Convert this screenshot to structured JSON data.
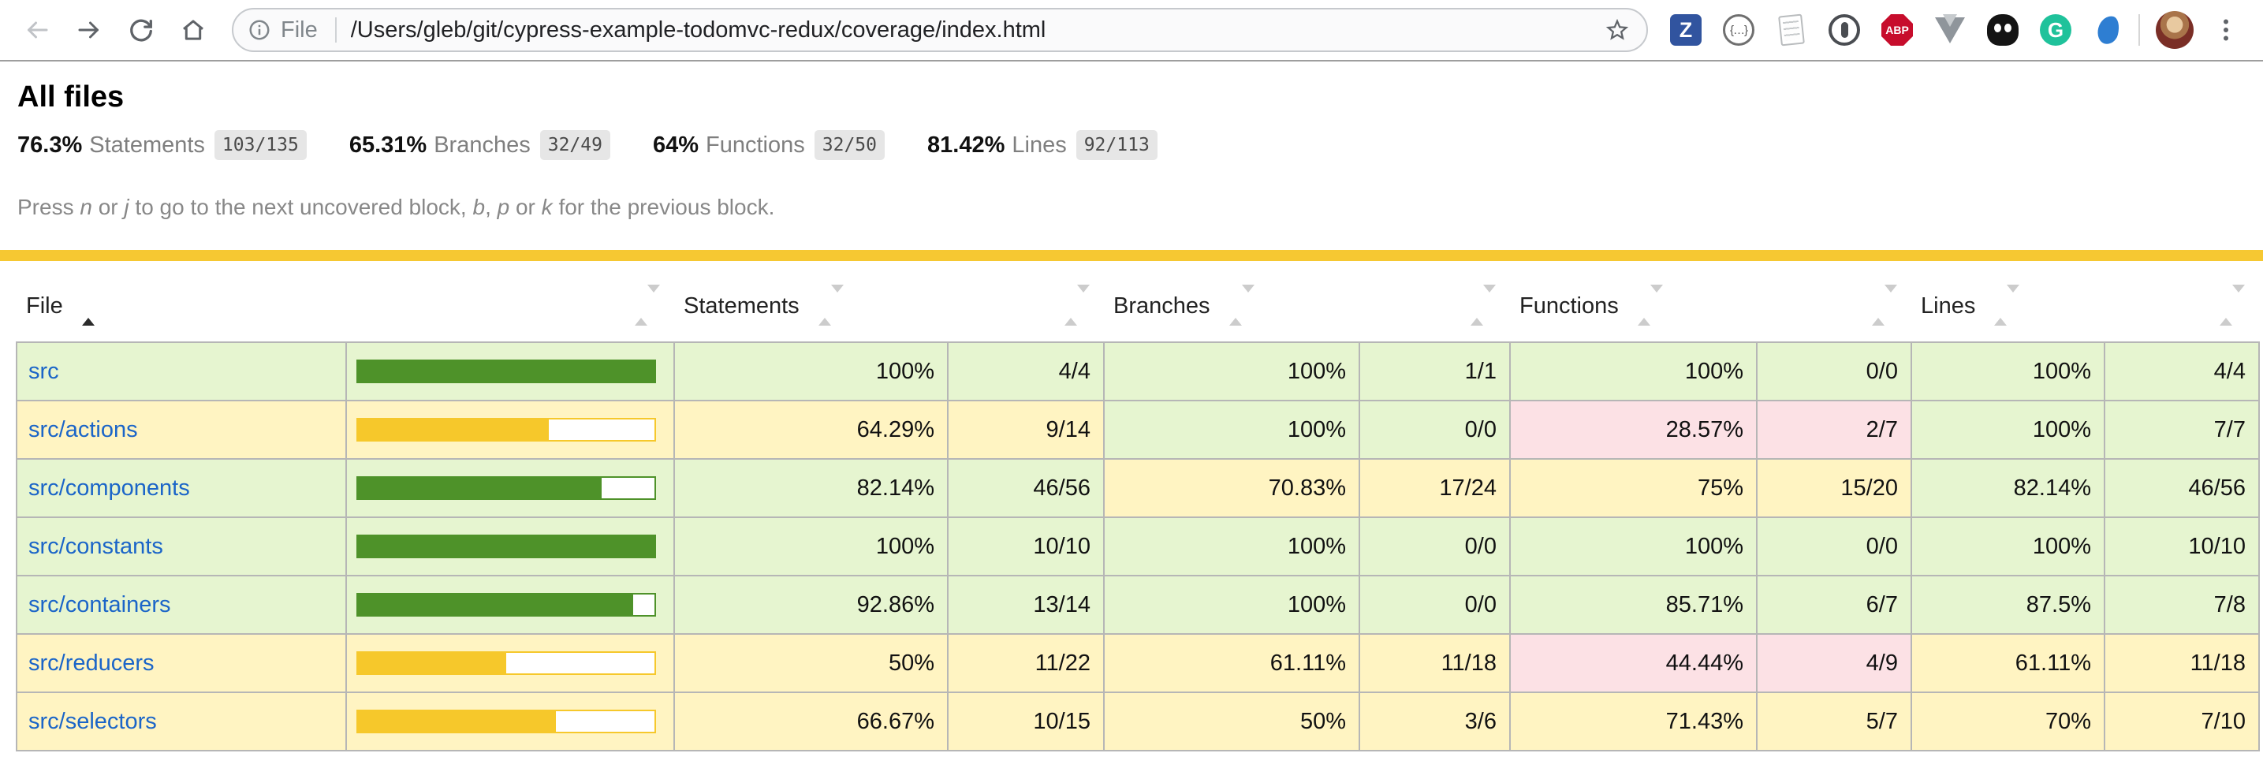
{
  "browser": {
    "address_bar": {
      "scheme_label": "File",
      "url": "/Users/gleb/git/cypress-example-todomvc-redux/coverage/index.html"
    },
    "extensions": [
      {
        "name": "zotero",
        "letter": "Z"
      },
      {
        "name": "json-formatter",
        "letter": "{…}"
      },
      {
        "name": "notes",
        "letter": ""
      },
      {
        "name": "1password",
        "letter": ""
      },
      {
        "name": "adblock-plus",
        "letter": "ABP"
      },
      {
        "name": "vue-devtools",
        "letter": ""
      },
      {
        "name": "kuker",
        "letter": ""
      },
      {
        "name": "grammarly",
        "letter": "G"
      },
      {
        "name": "blue-flame",
        "letter": ""
      }
    ]
  },
  "page": {
    "title": "All files",
    "summary": [
      {
        "pct": "76.3%",
        "label": "Statements",
        "fraction": "103/135"
      },
      {
        "pct": "65.31%",
        "label": "Branches",
        "fraction": "32/49"
      },
      {
        "pct": "64%",
        "label": "Functions",
        "fraction": "32/50"
      },
      {
        "pct": "81.42%",
        "label": "Lines",
        "fraction": "92/113"
      }
    ],
    "hint_segments": [
      {
        "text": "Press ",
        "em": false
      },
      {
        "text": "n",
        "em": true
      },
      {
        "text": " or ",
        "em": false
      },
      {
        "text": "j",
        "em": true
      },
      {
        "text": " to go to the next uncovered block, ",
        "em": false
      },
      {
        "text": "b",
        "em": true
      },
      {
        "text": ", ",
        "em": false
      },
      {
        "text": "p",
        "em": true
      },
      {
        "text": " or ",
        "em": false
      },
      {
        "text": "k",
        "em": true
      },
      {
        "text": " for the previous block.",
        "em": false
      }
    ]
  },
  "table": {
    "headers": {
      "file": "File",
      "statements": "Statements",
      "branches": "Branches",
      "functions": "Functions",
      "lines": "Lines"
    },
    "sort": {
      "column": "file",
      "direction": "asc"
    },
    "rows": [
      {
        "file": "src",
        "level": "high",
        "bar_pct": 100,
        "statements": {
          "pct": "100%",
          "ratio": "4/4",
          "level": "high"
        },
        "branches": {
          "pct": "100%",
          "ratio": "1/1",
          "level": "high"
        },
        "functions": {
          "pct": "100%",
          "ratio": "0/0",
          "level": "high"
        },
        "lines": {
          "pct": "100%",
          "ratio": "4/4",
          "level": "high"
        }
      },
      {
        "file": "src/actions",
        "level": "medium",
        "bar_pct": 64.29,
        "statements": {
          "pct": "64.29%",
          "ratio": "9/14",
          "level": "medium"
        },
        "branches": {
          "pct": "100%",
          "ratio": "0/0",
          "level": "high"
        },
        "functions": {
          "pct": "28.57%",
          "ratio": "2/7",
          "level": "low"
        },
        "lines": {
          "pct": "100%",
          "ratio": "7/7",
          "level": "high"
        }
      },
      {
        "file": "src/components",
        "level": "high",
        "bar_pct": 82.14,
        "statements": {
          "pct": "82.14%",
          "ratio": "46/56",
          "level": "high"
        },
        "branches": {
          "pct": "70.83%",
          "ratio": "17/24",
          "level": "medium"
        },
        "functions": {
          "pct": "75%",
          "ratio": "15/20",
          "level": "medium"
        },
        "lines": {
          "pct": "82.14%",
          "ratio": "46/56",
          "level": "high"
        }
      },
      {
        "file": "src/constants",
        "level": "high",
        "bar_pct": 100,
        "statements": {
          "pct": "100%",
          "ratio": "10/10",
          "level": "high"
        },
        "branches": {
          "pct": "100%",
          "ratio": "0/0",
          "level": "high"
        },
        "functions": {
          "pct": "100%",
          "ratio": "0/0",
          "level": "high"
        },
        "lines": {
          "pct": "100%",
          "ratio": "10/10",
          "level": "high"
        }
      },
      {
        "file": "src/containers",
        "level": "high",
        "bar_pct": 92.86,
        "statements": {
          "pct": "92.86%",
          "ratio": "13/14",
          "level": "high"
        },
        "branches": {
          "pct": "100%",
          "ratio": "0/0",
          "level": "high"
        },
        "functions": {
          "pct": "85.71%",
          "ratio": "6/7",
          "level": "high"
        },
        "lines": {
          "pct": "87.5%",
          "ratio": "7/8",
          "level": "high"
        }
      },
      {
        "file": "src/reducers",
        "level": "medium",
        "bar_pct": 50,
        "statements": {
          "pct": "50%",
          "ratio": "11/22",
          "level": "medium"
        },
        "branches": {
          "pct": "61.11%",
          "ratio": "11/18",
          "level": "medium"
        },
        "functions": {
          "pct": "44.44%",
          "ratio": "4/9",
          "level": "low"
        },
        "lines": {
          "pct": "61.11%",
          "ratio": "11/18",
          "level": "medium"
        }
      },
      {
        "file": "src/selectors",
        "level": "medium",
        "bar_pct": 66.67,
        "statements": {
          "pct": "66.67%",
          "ratio": "10/15",
          "level": "medium"
        },
        "branches": {
          "pct": "50%",
          "ratio": "3/6",
          "level": "medium"
        },
        "functions": {
          "pct": "71.43%",
          "ratio": "5/7",
          "level": "medium"
        },
        "lines": {
          "pct": "70%",
          "ratio": "7/10",
          "level": "medium"
        }
      }
    ]
  },
  "colors": {
    "high_bg": "#e6f5d0",
    "medium_bg": "#fff4c2",
    "low_bg": "#fce1e5",
    "bar_fill_high": "#4e9229",
    "bar_fill_medium": "#f6c82b",
    "status_line": "#f6c832",
    "link": "#1b65c8"
  }
}
